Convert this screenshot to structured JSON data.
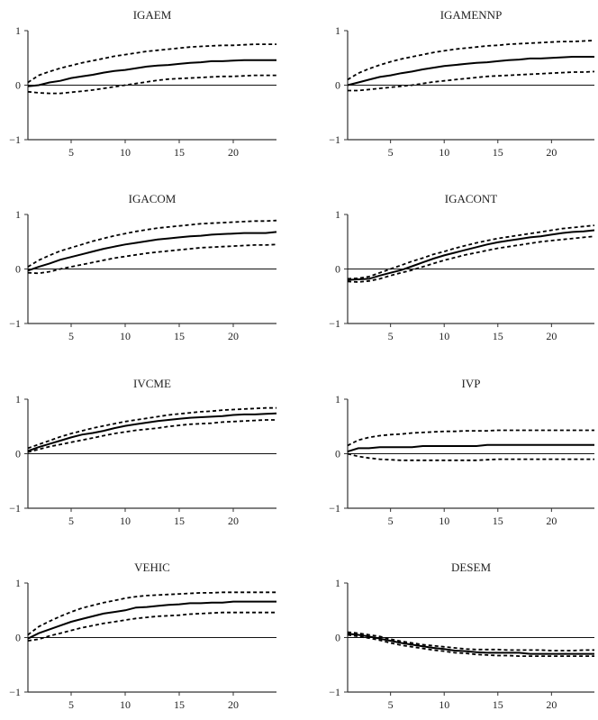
{
  "chart_data": [
    {
      "type": "line",
      "title": "IGAEM",
      "x": [
        1,
        2,
        3,
        4,
        5,
        6,
        7,
        8,
        9,
        10,
        11,
        12,
        13,
        14,
        15,
        16,
        17,
        18,
        19,
        20,
        21,
        22,
        23,
        24
      ],
      "xlim": [
        1,
        24
      ],
      "ylim": [
        -1,
        1
      ],
      "xticks": [
        5,
        10,
        15,
        20
      ],
      "yticks": [
        -1,
        0,
        1
      ],
      "series": [
        {
          "style": "solid",
          "values": [
            -0.02,
            0.0,
            0.05,
            0.08,
            0.13,
            0.16,
            0.19,
            0.23,
            0.26,
            0.28,
            0.31,
            0.34,
            0.36,
            0.37,
            0.39,
            0.41,
            0.42,
            0.44,
            0.44,
            0.45,
            0.46,
            0.46,
            0.46,
            0.46
          ]
        },
        {
          "style": "dashed",
          "values": [
            0.05,
            0.18,
            0.25,
            0.31,
            0.36,
            0.41,
            0.45,
            0.49,
            0.53,
            0.56,
            0.59,
            0.62,
            0.64,
            0.66,
            0.68,
            0.7,
            0.71,
            0.72,
            0.73,
            0.73,
            0.74,
            0.75,
            0.75,
            0.75
          ]
        },
        {
          "style": "dashed",
          "values": [
            -0.12,
            -0.14,
            -0.15,
            -0.15,
            -0.13,
            -0.11,
            -0.09,
            -0.06,
            -0.03,
            0.0,
            0.03,
            0.06,
            0.09,
            0.11,
            0.12,
            0.13,
            0.14,
            0.15,
            0.16,
            0.16,
            0.17,
            0.18,
            0.18,
            0.18
          ]
        }
      ]
    },
    {
      "type": "line",
      "title": "IGAMENNP",
      "x": [
        1,
        2,
        3,
        4,
        5,
        6,
        7,
        8,
        9,
        10,
        11,
        12,
        13,
        14,
        15,
        16,
        17,
        18,
        19,
        20,
        21,
        22,
        23,
        24
      ],
      "xlim": [
        1,
        24
      ],
      "ylim": [
        -1,
        1
      ],
      "xticks": [
        5,
        10,
        15,
        20
      ],
      "yticks": [
        -1,
        0,
        1
      ],
      "series": [
        {
          "style": "solid",
          "values": [
            0,
            0.05,
            0.1,
            0.15,
            0.18,
            0.22,
            0.25,
            0.29,
            0.32,
            0.35,
            0.37,
            0.39,
            0.41,
            0.42,
            0.44,
            0.46,
            0.47,
            0.49,
            0.49,
            0.5,
            0.51,
            0.52,
            0.52,
            0.52
          ]
        },
        {
          "style": "dashed",
          "values": [
            0.1,
            0.22,
            0.3,
            0.37,
            0.43,
            0.48,
            0.52,
            0.56,
            0.6,
            0.63,
            0.66,
            0.68,
            0.7,
            0.72,
            0.73,
            0.75,
            0.76,
            0.77,
            0.78,
            0.79,
            0.8,
            0.8,
            0.81,
            0.82
          ]
        },
        {
          "style": "dashed",
          "values": [
            -0.1,
            -0.1,
            -0.08,
            -0.06,
            -0.04,
            -0.02,
            0.0,
            0.03,
            0.06,
            0.08,
            0.1,
            0.12,
            0.14,
            0.16,
            0.17,
            0.18,
            0.19,
            0.2,
            0.21,
            0.22,
            0.23,
            0.24,
            0.24,
            0.25
          ]
        }
      ]
    },
    {
      "type": "line",
      "title": "IGACOM",
      "x": [
        1,
        2,
        3,
        4,
        5,
        6,
        7,
        8,
        9,
        10,
        11,
        12,
        13,
        14,
        15,
        16,
        17,
        18,
        19,
        20,
        21,
        22,
        23,
        24
      ],
      "xlim": [
        1,
        24
      ],
      "ylim": [
        -1,
        1
      ],
      "xticks": [
        5,
        10,
        15,
        20
      ],
      "yticks": [
        -1,
        0,
        1
      ],
      "series": [
        {
          "style": "solid",
          "values": [
            -0.03,
            0.04,
            0.1,
            0.17,
            0.22,
            0.27,
            0.32,
            0.37,
            0.41,
            0.45,
            0.48,
            0.51,
            0.54,
            0.56,
            0.58,
            0.6,
            0.61,
            0.63,
            0.64,
            0.65,
            0.66,
            0.66,
            0.66,
            0.68
          ]
        },
        {
          "style": "dashed",
          "values": [
            0.04,
            0.16,
            0.25,
            0.33,
            0.39,
            0.45,
            0.51,
            0.56,
            0.61,
            0.65,
            0.69,
            0.72,
            0.75,
            0.77,
            0.79,
            0.81,
            0.83,
            0.84,
            0.85,
            0.86,
            0.87,
            0.88,
            0.88,
            0.89
          ]
        },
        {
          "style": "dashed",
          "values": [
            -0.07,
            -0.08,
            -0.05,
            0.0,
            0.04,
            0.08,
            0.12,
            0.16,
            0.2,
            0.23,
            0.26,
            0.29,
            0.31,
            0.33,
            0.35,
            0.37,
            0.39,
            0.4,
            0.41,
            0.42,
            0.43,
            0.44,
            0.44,
            0.45
          ]
        }
      ]
    },
    {
      "type": "line",
      "title": "IGACONT",
      "x": [
        1,
        2,
        3,
        4,
        5,
        6,
        7,
        8,
        9,
        10,
        11,
        12,
        13,
        14,
        15,
        16,
        17,
        18,
        19,
        20,
        21,
        22,
        23,
        24
      ],
      "xlim": [
        1,
        24
      ],
      "ylim": [
        -1,
        1
      ],
      "xticks": [
        5,
        10,
        15,
        20
      ],
      "yticks": [
        -1,
        0,
        1
      ],
      "series": [
        {
          "style": "solid",
          "values": [
            -0.2,
            -0.19,
            -0.18,
            -0.12,
            -0.07,
            -0.02,
            0.05,
            0.12,
            0.19,
            0.25,
            0.3,
            0.35,
            0.4,
            0.45,
            0.49,
            0.52,
            0.55,
            0.58,
            0.6,
            0.63,
            0.66,
            0.68,
            0.69,
            0.71
          ]
        },
        {
          "style": "dashed",
          "values": [
            -0.18,
            -0.17,
            -0.14,
            -0.07,
            0.0,
            0.07,
            0.14,
            0.2,
            0.27,
            0.32,
            0.38,
            0.43,
            0.48,
            0.52,
            0.56,
            0.59,
            0.62,
            0.65,
            0.68,
            0.71,
            0.74,
            0.76,
            0.78,
            0.8
          ]
        },
        {
          "style": "dashed",
          "values": [
            -0.23,
            -0.24,
            -0.22,
            -0.18,
            -0.12,
            -0.07,
            -0.02,
            0.04,
            0.1,
            0.16,
            0.21,
            0.26,
            0.3,
            0.34,
            0.38,
            0.41,
            0.44,
            0.47,
            0.5,
            0.52,
            0.54,
            0.56,
            0.58,
            0.6
          ]
        }
      ]
    },
    {
      "type": "line",
      "title": "IVCME",
      "x": [
        1,
        2,
        3,
        4,
        5,
        6,
        7,
        8,
        9,
        10,
        11,
        12,
        13,
        14,
        15,
        16,
        17,
        18,
        19,
        20,
        21,
        22,
        23,
        24
      ],
      "xlim": [
        1,
        24
      ],
      "ylim": [
        -1,
        1
      ],
      "xticks": [
        5,
        10,
        15,
        20
      ],
      "yticks": [
        -1,
        0,
        1
      ],
      "series": [
        {
          "style": "solid",
          "values": [
            0.05,
            0.12,
            0.18,
            0.24,
            0.3,
            0.35,
            0.38,
            0.42,
            0.47,
            0.51,
            0.54,
            0.57,
            0.6,
            0.62,
            0.64,
            0.66,
            0.67,
            0.68,
            0.69,
            0.71,
            0.72,
            0.72,
            0.73,
            0.74
          ]
        },
        {
          "style": "dashed",
          "values": [
            0.1,
            0.17,
            0.24,
            0.31,
            0.37,
            0.42,
            0.47,
            0.51,
            0.55,
            0.59,
            0.62,
            0.65,
            0.68,
            0.71,
            0.73,
            0.75,
            0.77,
            0.78,
            0.8,
            0.81,
            0.82,
            0.83,
            0.84,
            0.84
          ]
        },
        {
          "style": "dashed",
          "values": [
            0.03,
            0.08,
            0.13,
            0.17,
            0.21,
            0.25,
            0.29,
            0.33,
            0.37,
            0.4,
            0.43,
            0.45,
            0.47,
            0.5,
            0.52,
            0.54,
            0.55,
            0.56,
            0.58,
            0.59,
            0.6,
            0.61,
            0.62,
            0.62
          ]
        }
      ]
    },
    {
      "type": "line",
      "title": "IVP",
      "x": [
        1,
        2,
        3,
        4,
        5,
        6,
        7,
        8,
        9,
        10,
        11,
        12,
        13,
        14,
        15,
        16,
        17,
        18,
        19,
        20,
        21,
        22,
        23,
        24
      ],
      "xlim": [
        1,
        24
      ],
      "ylim": [
        -1,
        1
      ],
      "xticks": [
        5,
        10,
        15,
        20
      ],
      "yticks": [
        -1,
        0,
        1
      ],
      "series": [
        {
          "style": "solid",
          "values": [
            0.04,
            0.1,
            0.1,
            0.12,
            0.12,
            0.12,
            0.12,
            0.14,
            0.14,
            0.14,
            0.14,
            0.14,
            0.14,
            0.16,
            0.16,
            0.16,
            0.16,
            0.16,
            0.16,
            0.16,
            0.16,
            0.16,
            0.16,
            0.16
          ]
        },
        {
          "style": "dashed",
          "values": [
            0.15,
            0.25,
            0.3,
            0.33,
            0.35,
            0.36,
            0.38,
            0.39,
            0.4,
            0.41,
            0.41,
            0.42,
            0.42,
            0.42,
            0.43,
            0.43,
            0.43,
            0.43,
            0.43,
            0.43,
            0.43,
            0.43,
            0.43,
            0.43
          ]
        },
        {
          "style": "dashed",
          "values": [
            0.0,
            -0.05,
            -0.08,
            -0.1,
            -0.11,
            -0.12,
            -0.12,
            -0.12,
            -0.12,
            -0.12,
            -0.12,
            -0.12,
            -0.12,
            -0.11,
            -0.1,
            -0.1,
            -0.1,
            -0.1,
            -0.1,
            -0.1,
            -0.1,
            -0.1,
            -0.1,
            -0.1
          ]
        }
      ]
    },
    {
      "type": "line",
      "title": "VEHIC",
      "x": [
        1,
        2,
        3,
        4,
        5,
        6,
        7,
        8,
        9,
        10,
        11,
        12,
        13,
        14,
        15,
        16,
        17,
        18,
        19,
        20,
        21,
        22,
        23,
        24
      ],
      "xlim": [
        1,
        24
      ],
      "ylim": [
        -1,
        1
      ],
      "xticks": [
        5,
        10,
        15,
        20
      ],
      "yticks": [
        -1,
        0,
        1
      ],
      "series": [
        {
          "style": "solid",
          "values": [
            -0.02,
            0.08,
            0.15,
            0.22,
            0.29,
            0.34,
            0.39,
            0.44,
            0.47,
            0.5,
            0.55,
            0.56,
            0.58,
            0.6,
            0.61,
            0.63,
            0.63,
            0.64,
            0.64,
            0.66,
            0.66,
            0.66,
            0.66,
            0.66
          ]
        },
        {
          "style": "dashed",
          "values": [
            0.05,
            0.2,
            0.3,
            0.39,
            0.47,
            0.54,
            0.59,
            0.64,
            0.68,
            0.72,
            0.75,
            0.77,
            0.78,
            0.79,
            0.8,
            0.81,
            0.82,
            0.82,
            0.83,
            0.83,
            0.83,
            0.83,
            0.83,
            0.83
          ]
        },
        {
          "style": "dashed",
          "values": [
            -0.06,
            -0.03,
            0.03,
            0.08,
            0.13,
            0.18,
            0.22,
            0.26,
            0.29,
            0.32,
            0.35,
            0.37,
            0.39,
            0.4,
            0.41,
            0.43,
            0.44,
            0.45,
            0.46,
            0.46,
            0.46,
            0.46,
            0.46,
            0.46
          ]
        }
      ]
    },
    {
      "type": "line",
      "title": "DESEM",
      "x": [
        1,
        2,
        3,
        4,
        5,
        6,
        7,
        8,
        9,
        10,
        11,
        12,
        13,
        14,
        15,
        16,
        17,
        18,
        19,
        20,
        21,
        22,
        23,
        24
      ],
      "xlim": [
        1,
        24
      ],
      "ylim": [
        -1,
        1
      ],
      "xticks": [
        5,
        10,
        15,
        20
      ],
      "yticks": [
        -1,
        0,
        1
      ],
      "series": [
        {
          "style": "solid",
          "values": [
            0.07,
            0.05,
            0.02,
            -0.02,
            -0.06,
            -0.1,
            -0.13,
            -0.16,
            -0.19,
            -0.21,
            -0.24,
            -0.25,
            -0.27,
            -0.28,
            -0.28,
            -0.28,
            -0.28,
            -0.3,
            -0.3,
            -0.3,
            -0.3,
            -0.3,
            -0.3,
            -0.3
          ]
        },
        {
          "style": "dashed",
          "values": [
            0.1,
            0.08,
            0.05,
            0.02,
            -0.03,
            -0.07,
            -0.1,
            -0.13,
            -0.15,
            -0.17,
            -0.19,
            -0.21,
            -0.22,
            -0.22,
            -0.22,
            -0.23,
            -0.23,
            -0.23,
            -0.23,
            -0.24,
            -0.24,
            -0.24,
            -0.23,
            -0.23
          ]
        },
        {
          "style": "dashed",
          "values": [
            0.05,
            0.02,
            -0.01,
            -0.05,
            -0.1,
            -0.14,
            -0.17,
            -0.2,
            -0.23,
            -0.25,
            -0.28,
            -0.29,
            -0.31,
            -0.32,
            -0.33,
            -0.33,
            -0.34,
            -0.34,
            -0.34,
            -0.34,
            -0.34,
            -0.34,
            -0.34,
            -0.34
          ]
        }
      ]
    }
  ]
}
